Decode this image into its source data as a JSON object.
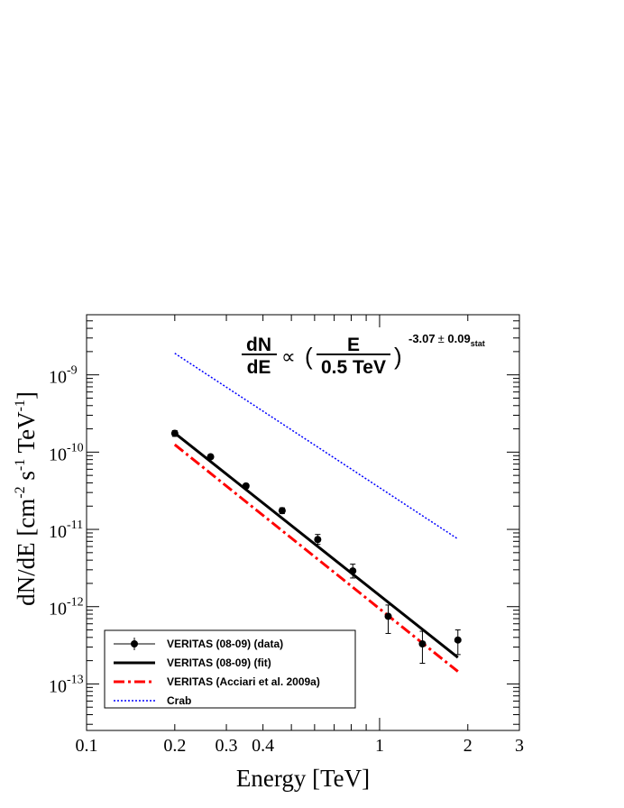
{
  "chart_data": {
    "type": "line",
    "xscale": "log",
    "yscale": "log",
    "xlabel": "Energy [TeV]",
    "ylabel": {
      "prefix": "dN/dE [cm",
      "exp1": "-2",
      "mid1": " s",
      "exp2": "-1",
      "mid2": " TeV",
      "exp3": "-1",
      "suffix": "]"
    },
    "xlim": [
      0.1,
      3
    ],
    "ylim": [
      2.5e-14,
      6e-09
    ],
    "x_ticks": [
      {
        "value": 0.1,
        "label": "0.1"
      },
      {
        "value": 0.2,
        "label": "0.2"
      },
      {
        "value": 0.3,
        "label": "0.3"
      },
      {
        "value": 0.4,
        "label": "0.4"
      },
      {
        "value": 1,
        "label": "1"
      },
      {
        "value": 2,
        "label": "2"
      },
      {
        "value": 3,
        "label": "3"
      }
    ],
    "y_ticks": [
      {
        "value": 1e-13,
        "base": "10",
        "exp": "-13"
      },
      {
        "value": 1e-12,
        "base": "10",
        "exp": "-12"
      },
      {
        "value": 1e-11,
        "base": "10",
        "exp": "-11"
      },
      {
        "value": 1e-10,
        "base": "10",
        "exp": "-10"
      },
      {
        "value": 1e-09,
        "base": "10",
        "exp": "-9"
      }
    ],
    "formula": {
      "lhs_num": "dN",
      "lhs_den": "dE",
      "prop": "∝",
      "open": "(",
      "rhs_num": "E",
      "rhs_den": "0.5 TeV",
      "close": ")",
      "index": "-3.07",
      "pm": "±",
      "err": " 0.09",
      "err_sub": "stat"
    },
    "legend": {
      "position": "bottom-left",
      "entries": [
        {
          "label": "VERITAS (08-09) (data)",
          "style": "points-errorbars",
          "color": "#000000"
        },
        {
          "label": "VERITAS (08-09) (fit)",
          "style": "solid",
          "color": "#000000"
        },
        {
          "label": "VERITAS (Acciari et al. 2009a)",
          "style": "dash-dot",
          "color": "#ff0000"
        },
        {
          "label": "Crab",
          "style": "dotted",
          "color": "#0000ff"
        }
      ]
    },
    "series": [
      {
        "name": "VERITAS (08-09) (data)",
        "style": "points",
        "color": "#000000",
        "points": [
          {
            "x": 0.2,
            "y": 1.75e-10,
            "ylo": 1.6e-10,
            "yhi": 1.9e-10
          },
          {
            "x": 0.265,
            "y": 8.7e-11,
            "ylo": 8.2e-11,
            "yhi": 9.3e-11
          },
          {
            "x": 0.35,
            "y": 3.65e-11,
            "ylo": 3.4e-11,
            "yhi": 3.9e-11
          },
          {
            "x": 0.465,
            "y": 1.75e-11,
            "ylo": 1.6e-11,
            "yhi": 1.9e-11
          },
          {
            "x": 0.615,
            "y": 7.4e-12,
            "ylo": 6.4e-12,
            "yhi": 8.6e-12
          },
          {
            "x": 0.81,
            "y": 2.9e-12,
            "ylo": 2.35e-12,
            "yhi": 3.55e-12
          },
          {
            "x": 1.07,
            "y": 7.5e-13,
            "ylo": 4.5e-13,
            "yhi": 1.05e-12
          },
          {
            "x": 1.4,
            "y": 3.3e-13,
            "ylo": 1.85e-13,
            "yhi": 4.8e-13
          },
          {
            "x": 1.85,
            "y": 3.7e-13,
            "ylo": 2.4e-13,
            "yhi": 5e-13
          }
        ]
      },
      {
        "name": "VERITAS (08-09) (fit)",
        "style": "solid",
        "color": "#000000",
        "points": [
          {
            "x": 0.2,
            "y": 1.76e-10
          },
          {
            "x": 1.85,
            "y": 2.2e-13
          }
        ]
      },
      {
        "name": "VERITAS (Acciari et al. 2009a)",
        "style": "dash-dot",
        "color": "#ff0000",
        "points": [
          {
            "x": 0.2,
            "y": 1.25e-10
          },
          {
            "x": 1.85,
            "y": 1.45e-13
          }
        ]
      },
      {
        "name": "Crab",
        "style": "dotted",
        "color": "#0000ff",
        "points": [
          {
            "x": 0.2,
            "y": 1.9e-09
          },
          {
            "x": 1.85,
            "y": 7.5e-12
          }
        ]
      }
    ]
  }
}
